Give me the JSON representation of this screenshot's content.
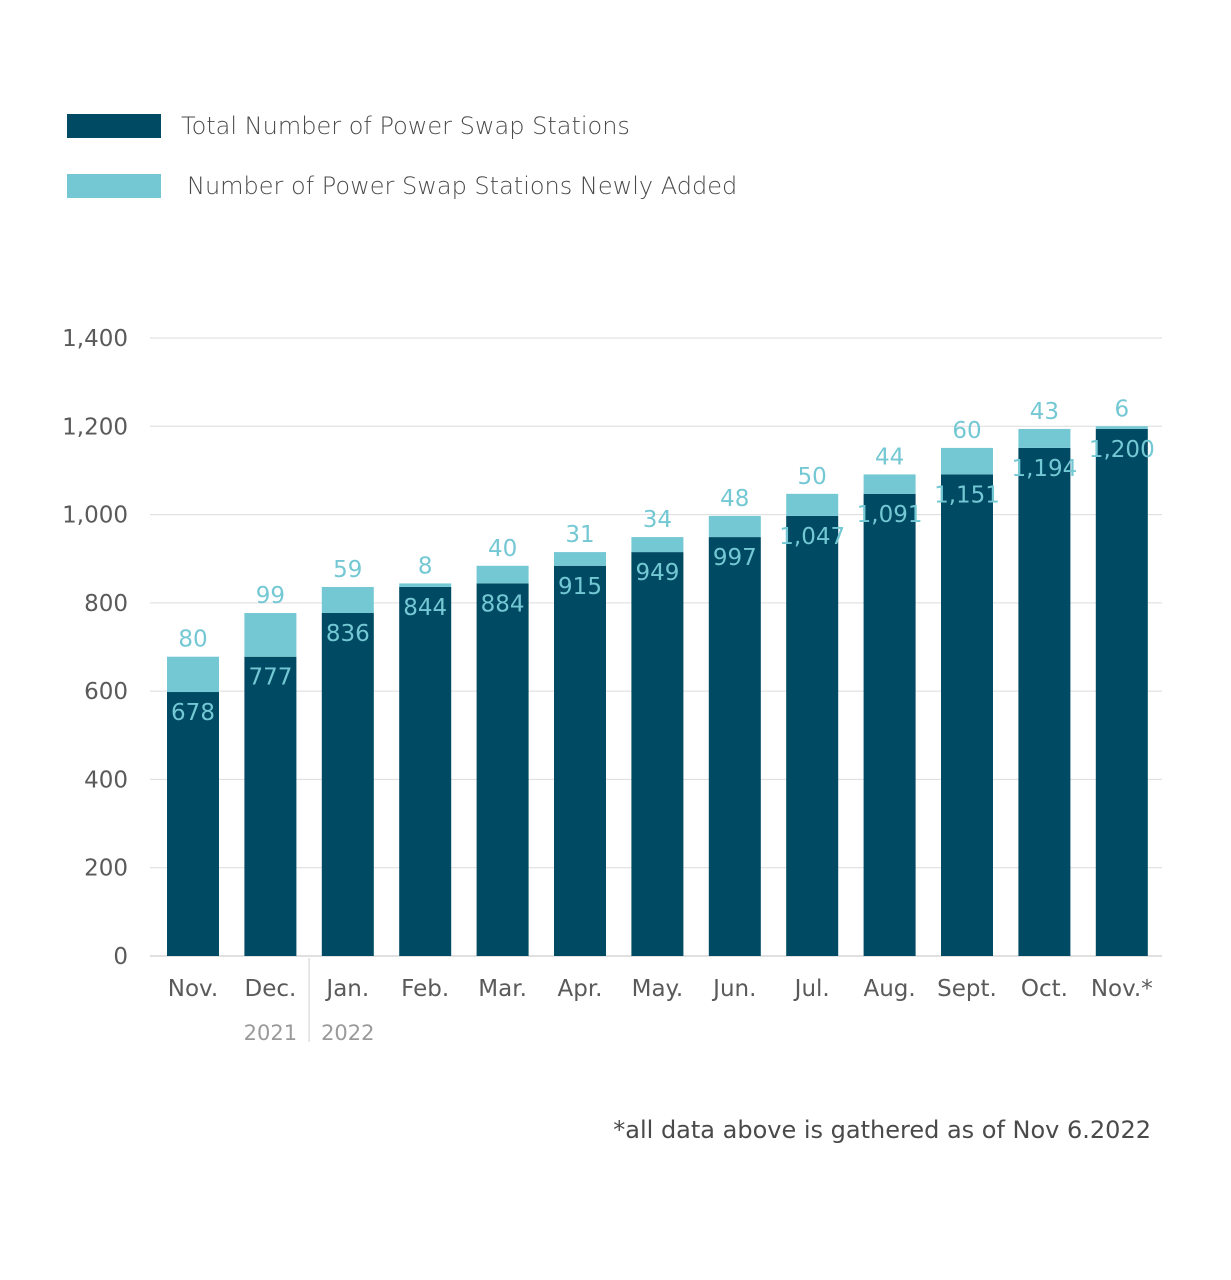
{
  "chart_data": {
    "type": "bar",
    "stacked": true,
    "categories": [
      "Nov.",
      "Dec.",
      "Jan.",
      "Feb.",
      "Mar.",
      "Apr.",
      "May.",
      "Jun.",
      "Jul.",
      "Aug.",
      "Sept.",
      "Oct.",
      "Nov.*"
    ],
    "year_labels": [
      {
        "label": "2021",
        "category": "Dec."
      },
      {
        "label": "2022",
        "category": "Jan."
      }
    ],
    "series": [
      {
        "name": "Total Number of Power Swap Stations",
        "values": [
          678,
          777,
          836,
          844,
          884,
          915,
          949,
          997,
          1047,
          1091,
          1151,
          1194,
          1200
        ],
        "labels": [
          "678",
          "777",
          "836",
          "844",
          "884",
          "915",
          "949",
          "997",
          "1,047",
          "1,091",
          "1,151",
          "1,194",
          "1,200"
        ],
        "color": "#004a63"
      },
      {
        "name": "Number of Power Swap Stations Newly Added",
        "values": [
          80,
          99,
          59,
          8,
          40,
          31,
          34,
          48,
          50,
          44,
          60,
          43,
          6
        ],
        "labels": [
          "80",
          "99",
          "59",
          "8",
          "40",
          "31",
          "34",
          "48",
          "50",
          "44",
          "60",
          "43",
          "6"
        ],
        "color": "#74c8d4"
      }
    ],
    "ylim": [
      0,
      1400
    ],
    "yticks": [
      0,
      200,
      400,
      600,
      800,
      1000,
      1200,
      1400
    ],
    "ytick_labels": [
      "0",
      "200",
      "400",
      "600",
      "800",
      "1,000",
      "1,200",
      "1,400"
    ],
    "grid": true,
    "legend_position": "top-left"
  },
  "footnote": "*all data above is gathered as of Nov 6.2022"
}
